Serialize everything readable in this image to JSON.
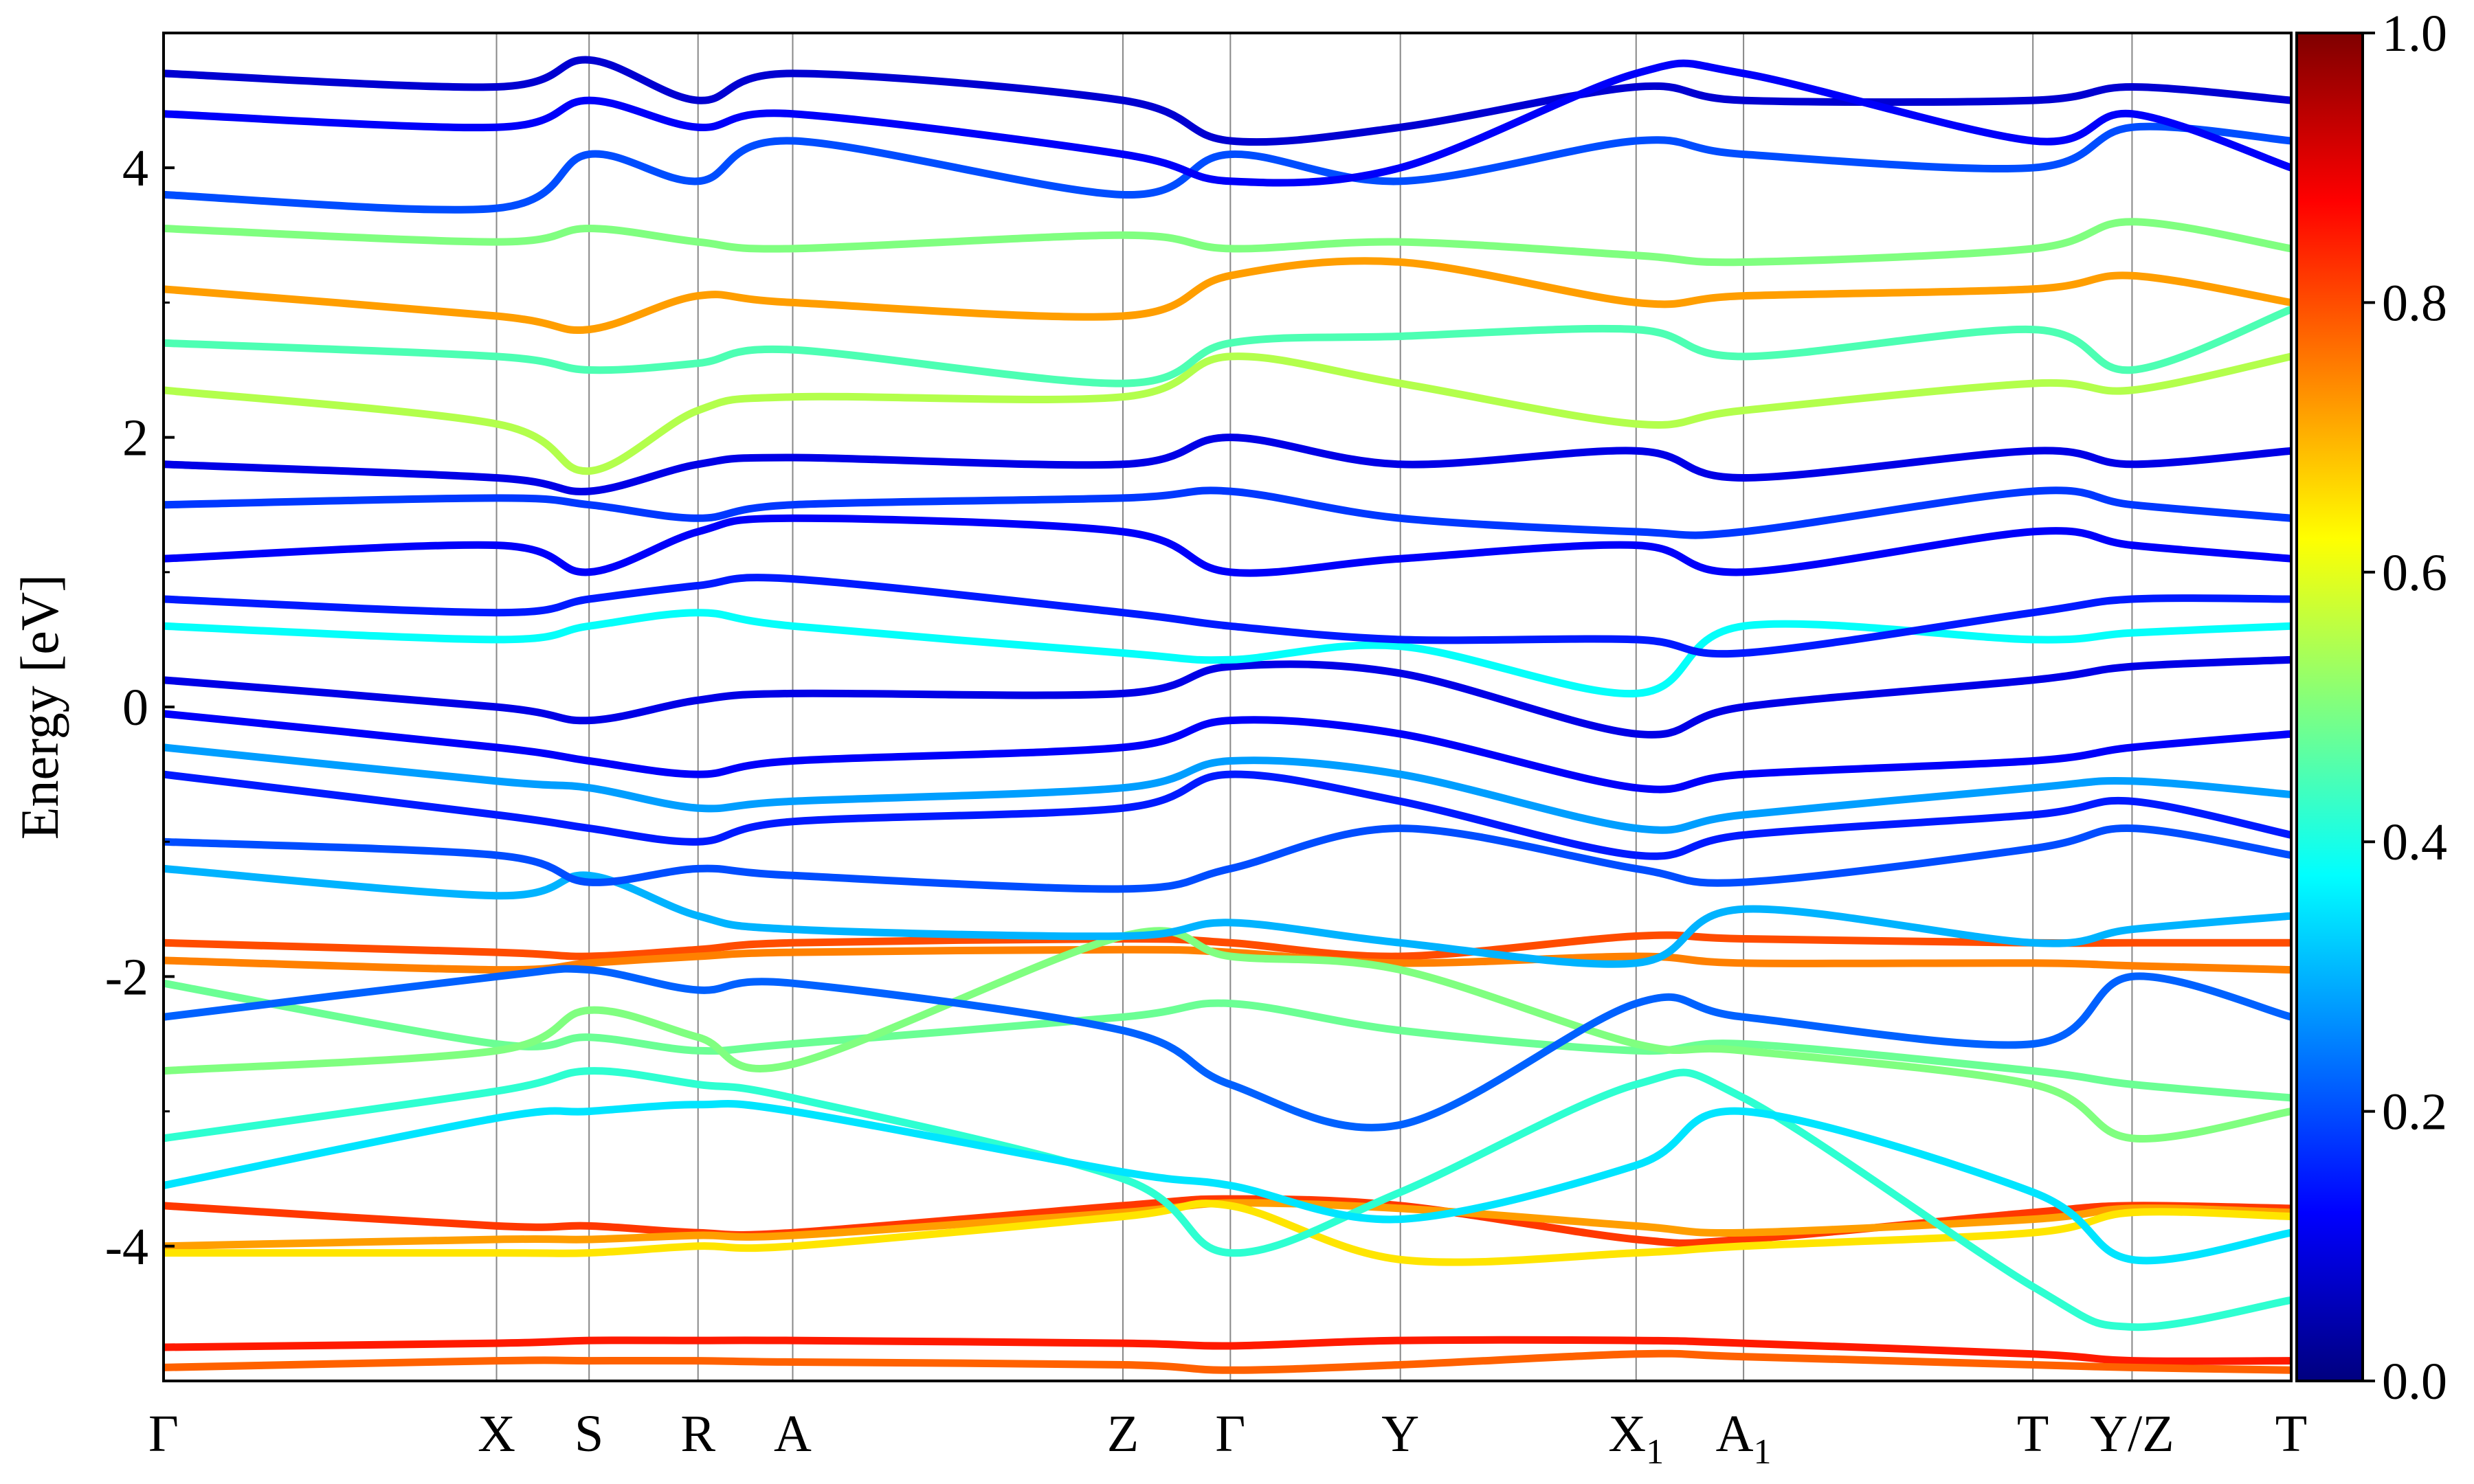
{
  "chart_data": {
    "type": "line",
    "subtype": "band-structure-colored",
    "title": "",
    "ylabel": "Energy [eV]",
    "ylim": [
      -5,
      5
    ],
    "yticks": [
      {
        "value": 4,
        "label": "4"
      },
      {
        "value": 2,
        "label": "2"
      },
      {
        "value": 0,
        "label": "0"
      },
      {
        "value": -2,
        "label": "-2"
      },
      {
        "value": -4,
        "label": "-4"
      }
    ],
    "kpath": [
      {
        "label": "Γ",
        "sub": ""
      },
      {
        "label": "X",
        "sub": ""
      },
      {
        "label": "S",
        "sub": ""
      },
      {
        "label": "R",
        "sub": ""
      },
      {
        "label": "A",
        "sub": ""
      },
      {
        "label": "Z",
        "sub": ""
      },
      {
        "label": "Γ",
        "sub": ""
      },
      {
        "label": "Y",
        "sub": ""
      },
      {
        "label": "X",
        "sub": "1"
      },
      {
        "label": "A",
        "sub": "1"
      },
      {
        "label": "T",
        "sub": ""
      },
      {
        "label": "Y/Z",
        "sub": ""
      },
      {
        "label": "T",
        "sub": ""
      }
    ],
    "kpath_positions": [
      0,
      0.1565,
      0.2,
      0.2512,
      0.2957,
      0.4509,
      0.5014,
      0.5813,
      0.6921,
      0.7426,
      0.8786,
      0.9252,
      1.0
    ],
    "colorbar": {
      "colormap": "jet",
      "range": [
        0.0,
        1.0
      ],
      "ticks": [
        {
          "value": 0.0,
          "label": "0.0"
        },
        {
          "value": 0.2,
          "label": "0.2"
        },
        {
          "value": 0.4,
          "label": "0.4"
        },
        {
          "value": 0.6,
          "label": "0.6"
        },
        {
          "value": 0.8,
          "label": "0.8"
        },
        {
          "value": 1.0,
          "label": "1.0"
        }
      ]
    },
    "bands": [
      {
        "weight": 0.85,
        "energies": [
          -4.75,
          -4.72,
          -4.7,
          -4.7,
          -4.7,
          -4.72,
          -4.74,
          -4.7,
          -4.7,
          -4.72,
          -4.8,
          -4.85,
          -4.85
        ]
      },
      {
        "weight": 0.78,
        "energies": [
          -4.9,
          -4.85,
          -4.85,
          -4.85,
          -4.86,
          -4.88,
          -4.92,
          -4.88,
          -4.8,
          -4.82,
          -4.88,
          -4.9,
          -4.92
        ]
      },
      {
        "weight": 0.82,
        "energies": [
          -3.7,
          -3.85,
          -3.85,
          -3.9,
          -3.9,
          -3.7,
          -3.65,
          -3.7,
          -3.95,
          -3.95,
          -3.75,
          -3.7,
          -3.72
        ]
      },
      {
        "weight": 0.72,
        "energies": [
          -4.0,
          -3.95,
          -3.95,
          -3.92,
          -3.92,
          -3.75,
          -3.68,
          -3.72,
          -3.85,
          -3.9,
          -3.8,
          -3.72,
          -3.75
        ]
      },
      {
        "weight": 0.65,
        "energies": [
          -4.05,
          -4.05,
          -4.05,
          -4.0,
          -4.0,
          -3.78,
          -3.7,
          -4.1,
          -4.05,
          -4.0,
          -3.9,
          -3.75,
          -3.78
        ]
      },
      {
        "weight": 0.8,
        "energies": [
          -1.75,
          -1.82,
          -1.85,
          -1.8,
          -1.75,
          -1.72,
          -1.75,
          -1.85,
          -1.7,
          -1.72,
          -1.75,
          -1.75,
          -1.75
        ]
      },
      {
        "weight": 0.75,
        "energies": [
          -1.88,
          -1.95,
          -1.9,
          -1.85,
          -1.82,
          -1.8,
          -1.82,
          -1.9,
          -1.85,
          -1.9,
          -1.9,
          -1.92,
          -1.95
        ]
      },
      {
        "weight": 0.48,
        "energies": [
          -2.05,
          -2.5,
          -2.45,
          -2.55,
          -2.5,
          -2.3,
          -2.2,
          -2.4,
          -2.55,
          -2.5,
          -2.7,
          -2.8,
          -2.9
        ]
      },
      {
        "weight": 0.5,
        "energies": [
          -2.7,
          -2.55,
          -2.25,
          -2.45,
          -2.65,
          -1.7,
          -1.85,
          -1.95,
          -2.5,
          -2.55,
          -2.8,
          -3.2,
          -3.0
        ]
      },
      {
        "weight": 0.42,
        "energies": [
          -3.2,
          -2.85,
          -2.7,
          -2.8,
          -2.9,
          -3.5,
          -4.05,
          -3.6,
          -2.8,
          -2.9,
          -4.3,
          -4.6,
          -4.4
        ]
      },
      {
        "weight": 0.3,
        "energies": [
          -1.2,
          -1.4,
          -1.25,
          -1.55,
          -1.65,
          -1.7,
          -1.6,
          -1.75,
          -1.9,
          -1.5,
          -1.75,
          -1.65,
          -1.55
        ]
      },
      {
        "weight": 0.22,
        "energies": [
          -2.3,
          -2.0,
          -1.95,
          -2.1,
          -2.05,
          -2.4,
          -2.8,
          -3.1,
          -2.2,
          -2.3,
          -2.5,
          -2.0,
          -2.3
        ]
      },
      {
        "weight": 0.35,
        "energies": [
          -3.55,
          -3.05,
          -3.0,
          -2.95,
          -3.0,
          -3.45,
          -3.55,
          -3.8,
          -3.4,
          -3.0,
          -3.6,
          -4.1,
          -3.9
        ]
      },
      {
        "weight": 0.15,
        "energies": [
          -0.5,
          -0.8,
          -0.9,
          -1.0,
          -0.85,
          -0.75,
          -0.5,
          -0.7,
          -1.1,
          -0.95,
          -0.8,
          -0.7,
          -0.95
        ]
      },
      {
        "weight": 0.2,
        "energies": [
          -1.0,
          -1.1,
          -1.3,
          -1.2,
          -1.25,
          -1.35,
          -1.2,
          -0.9,
          -1.2,
          -1.3,
          -1.05,
          -0.9,
          -1.1
        ]
      },
      {
        "weight": 0.12,
        "energies": [
          -0.05,
          -0.3,
          -0.4,
          -0.5,
          -0.4,
          -0.3,
          -0.1,
          -0.2,
          -0.6,
          -0.5,
          -0.4,
          -0.3,
          -0.2
        ]
      },
      {
        "weight": 0.28,
        "energies": [
          -0.3,
          -0.55,
          -0.6,
          -0.75,
          -0.7,
          -0.6,
          -0.4,
          -0.5,
          -0.9,
          -0.8,
          -0.6,
          -0.55,
          -0.65
        ]
      },
      {
        "weight": 0.1,
        "energies": [
          0.2,
          0.0,
          -0.1,
          0.05,
          0.1,
          0.1,
          0.3,
          0.25,
          -0.2,
          0.0,
          0.2,
          0.3,
          0.35
        ]
      },
      {
        "weight": 0.38,
        "energies": [
          0.6,
          0.5,
          0.6,
          0.7,
          0.6,
          0.4,
          0.35,
          0.45,
          0.1,
          0.6,
          0.5,
          0.55,
          0.6
        ]
      },
      {
        "weight": 0.15,
        "energies": [
          0.8,
          0.7,
          0.8,
          0.9,
          0.95,
          0.7,
          0.6,
          0.5,
          0.5,
          0.4,
          0.7,
          0.8,
          0.8
        ]
      },
      {
        "weight": 0.12,
        "energies": [
          1.1,
          1.2,
          1.0,
          1.3,
          1.4,
          1.3,
          1.0,
          1.1,
          1.2,
          1.0,
          1.3,
          1.2,
          1.1
        ]
      },
      {
        "weight": 0.18,
        "energies": [
          1.5,
          1.55,
          1.5,
          1.4,
          1.5,
          1.55,
          1.6,
          1.4,
          1.3,
          1.3,
          1.6,
          1.5,
          1.4
        ]
      },
      {
        "weight": 0.1,
        "energies": [
          1.8,
          1.7,
          1.6,
          1.8,
          1.85,
          1.8,
          2.0,
          1.8,
          1.9,
          1.7,
          1.9,
          1.8,
          1.9
        ]
      },
      {
        "weight": 0.55,
        "energies": [
          2.35,
          2.1,
          1.75,
          2.2,
          2.3,
          2.3,
          2.6,
          2.4,
          2.1,
          2.2,
          2.4,
          2.35,
          2.6
        ]
      },
      {
        "weight": 0.45,
        "energies": [
          2.7,
          2.6,
          2.5,
          2.55,
          2.65,
          2.4,
          2.7,
          2.75,
          2.8,
          2.6,
          2.8,
          2.5,
          2.95
        ]
      },
      {
        "weight": 0.72,
        "energies": [
          3.1,
          2.9,
          2.8,
          3.05,
          3.0,
          2.9,
          3.2,
          3.3,
          3.0,
          3.05,
          3.1,
          3.2,
          3.0
        ]
      },
      {
        "weight": 0.5,
        "energies": [
          3.55,
          3.45,
          3.55,
          3.45,
          3.4,
          3.5,
          3.4,
          3.45,
          3.35,
          3.3,
          3.4,
          3.6,
          3.4
        ]
      },
      {
        "weight": 0.2,
        "energies": [
          3.8,
          3.7,
          4.1,
          3.9,
          4.2,
          3.8,
          4.1,
          3.9,
          4.2,
          4.1,
          4.0,
          4.3,
          4.2
        ]
      },
      {
        "weight": 0.08,
        "energies": [
          4.7,
          4.6,
          4.8,
          4.5,
          4.7,
          4.5,
          4.2,
          4.3,
          4.6,
          4.5,
          4.5,
          4.6,
          4.5
        ]
      },
      {
        "weight": 0.12,
        "energies": [
          4.4,
          4.3,
          4.5,
          4.3,
          4.4,
          4.1,
          3.9,
          4.0,
          4.7,
          4.7,
          4.2,
          4.4,
          4.0
        ]
      }
    ]
  }
}
